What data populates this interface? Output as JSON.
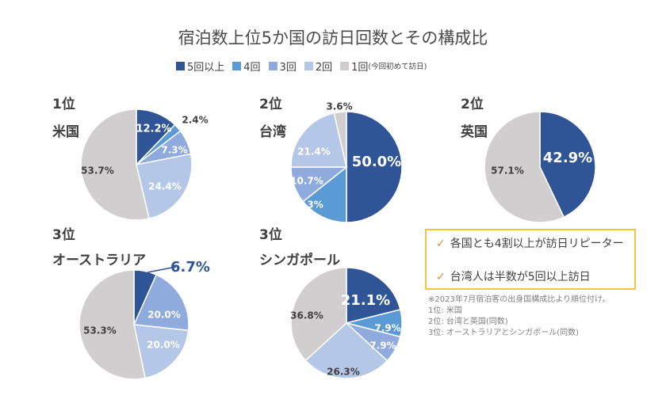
{
  "title": "宿泊数上位5か国の訪日回数とその構成比",
  "legend": [
    {
      "label": "5回以上",
      "color": "#2f5597"
    },
    {
      "label": "4回",
      "color": "#5b9bd5"
    },
    {
      "label": "3回",
      "color": "#8faadc"
    },
    {
      "label": "2回",
      "color": "#b4c7e7"
    },
    {
      "label": "1回",
      "note": "(今回初めて訪日)",
      "color": "#d0cece"
    }
  ],
  "chart_data": [
    {
      "type": "pie",
      "rank": "1位",
      "country": "米国",
      "categories": [
        "5回以上",
        "4回",
        "3回",
        "2回",
        "1回"
      ],
      "values": [
        12.2,
        2.4,
        7.3,
        24.4,
        53.7
      ],
      "labels": [
        "12.2%",
        "2.4%",
        "7.3%",
        "24.4%",
        "53.7%"
      ]
    },
    {
      "type": "pie",
      "rank": "2位",
      "country": "台湾",
      "categories": [
        "5回以上",
        "4回",
        "3回",
        "2回",
        "1回"
      ],
      "values": [
        50.0,
        14.3,
        10.7,
        21.4,
        3.6
      ],
      "labels": [
        "50.0%",
        "14.3%",
        "10.7%",
        "21.4%",
        "3.6%"
      ]
    },
    {
      "type": "pie",
      "rank": "2位",
      "country": "英国",
      "categories": [
        "5回以上",
        "1回"
      ],
      "values": [
        42.9,
        57.1
      ],
      "labels": [
        "42.9%",
        "57.1%"
      ]
    },
    {
      "type": "pie",
      "rank": "3位",
      "country": "オーストラリア",
      "categories": [
        "5回以上",
        "3回",
        "2回",
        "1回"
      ],
      "values": [
        6.7,
        20.0,
        20.0,
        53.3
      ],
      "labels": [
        "6.7%",
        "20.0%",
        "20.0%",
        "53.3%"
      ]
    },
    {
      "type": "pie",
      "rank": "3位",
      "country": "シンガポール",
      "categories": [
        "5回以上",
        "4回",
        "3回",
        "2回",
        "1回"
      ],
      "values": [
        21.1,
        7.9,
        7.9,
        26.3,
        36.8
      ],
      "labels": [
        "21.1%",
        "7.9%",
        "7.9%",
        "26.3%",
        "36.8%"
      ]
    }
  ],
  "callout": {
    "check_icon": "✓",
    "lines": [
      "各国とも4割以上が訪日リピーター",
      "台湾人は半数が5回以上訪日"
    ]
  },
  "notes": [
    "※2023年7月宿泊客の出身国構成比より順位付け。",
    "1位: 米国",
    "2位: 台湾と英国(同数)",
    "3位: オーストラリアとシンガポール(同数)"
  ]
}
